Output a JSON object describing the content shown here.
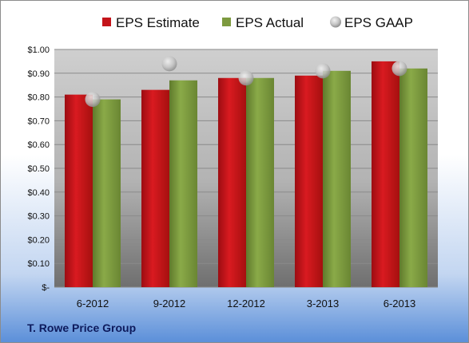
{
  "chart_data": {
    "type": "bar",
    "categories": [
      "6-2012",
      "9-2012",
      "12-2012",
      "3-2013",
      "6-2013"
    ],
    "series": [
      {
        "name": "EPS Estimate",
        "kind": "bar",
        "color": "#c4141a",
        "values": [
          0.81,
          0.83,
          0.88,
          0.89,
          0.95
        ]
      },
      {
        "name": "EPS Actual",
        "kind": "bar",
        "color": "#7d9a3f",
        "values": [
          0.79,
          0.87,
          0.88,
          0.91,
          0.92
        ]
      },
      {
        "name": "EPS GAAP",
        "kind": "marker",
        "color": "#b8b8b8",
        "values": [
          0.79,
          0.94,
          0.88,
          0.91,
          0.92
        ]
      }
    ],
    "y_ticks": [
      {
        "value": 0.0,
        "label": "$-"
      },
      {
        "value": 0.1,
        "label": "$0.10"
      },
      {
        "value": 0.2,
        "label": "$0.20"
      },
      {
        "value": 0.3,
        "label": "$0.30"
      },
      {
        "value": 0.4,
        "label": "$0.40"
      },
      {
        "value": 0.5,
        "label": "$0.50"
      },
      {
        "value": 0.6,
        "label": "$0.60"
      },
      {
        "value": 0.7,
        "label": "$0.70"
      },
      {
        "value": 0.8,
        "label": "$0.80"
      },
      {
        "value": 0.9,
        "label": "$0.90"
      },
      {
        "value": 1.0,
        "label": "$1.00"
      }
    ],
    "ylim": [
      0,
      1.0
    ],
    "grid": true,
    "legend_position": "top"
  },
  "footer": {
    "company": "T. Rowe Price Group"
  },
  "colors": {
    "background_top": "#ffffff",
    "background_bottom": "#5b8fd9",
    "plot_top": "#c8c8c8",
    "plot_bottom": "#7a7a7a"
  }
}
